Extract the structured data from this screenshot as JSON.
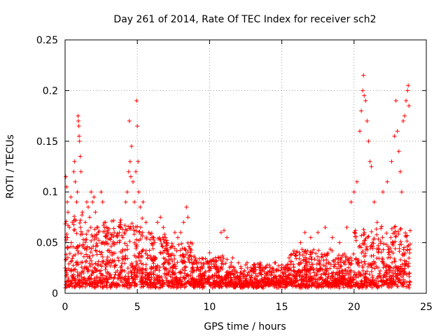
{
  "chart_data": {
    "type": "scatter",
    "title": "Day 261 of 2014, Rate Of TEC Index for receiver sch2",
    "xlabel": "GPS time / hours",
    "ylabel": "ROTI / TECUs",
    "xlim": [
      0,
      25
    ],
    "ylim": [
      0,
      0.25
    ],
    "x_ticks": [
      0,
      5,
      10,
      15,
      20,
      25
    ],
    "y_ticks": [
      0,
      0.05,
      0.1,
      0.15,
      0.2,
      0.25
    ],
    "x_tick_labels": [
      "0",
      "5",
      "10",
      "15",
      "20",
      "25"
    ],
    "y_tick_labels": [
      "0",
      "0.05",
      "0.1",
      "0.15",
      "0.2",
      "0.25"
    ],
    "grid": true,
    "legend": "none",
    "marker": "plus",
    "marker_color": "#ff0000",
    "x_data_range": [
      0,
      23.9
    ],
    "series": [
      {
        "points": [
          [
            0.05,
            0.115
          ],
          [
            0.1,
            0.105
          ],
          [
            0.15,
            0.09
          ],
          [
            0.2,
            0.08
          ],
          [
            0.3,
            0.065
          ],
          [
            0.4,
            0.095
          ],
          [
            0.5,
            0.07
          ],
          [
            0.6,
            0.12
          ],
          [
            0.65,
            0.13
          ],
          [
            0.7,
            0.11
          ],
          [
            0.8,
            0.09
          ],
          [
            0.85,
            0.1
          ],
          [
            0.9,
            0.175
          ],
          [
            0.92,
            0.17
          ],
          [
            0.95,
            0.165
          ],
          [
            0.97,
            0.155
          ],
          [
            1.0,
            0.15
          ],
          [
            1.05,
            0.135
          ],
          [
            1.1,
            0.12
          ],
          [
            1.2,
            0.08
          ],
          [
            1.4,
            0.07
          ],
          [
            1.5,
            0.09
          ],
          [
            1.6,
            0.085
          ],
          [
            1.7,
            0.075
          ],
          [
            1.8,
            0.1
          ],
          [
            1.9,
            0.09
          ],
          [
            2.0,
            0.095
          ],
          [
            2.1,
            0.08
          ],
          [
            2.2,
            0.065
          ],
          [
            2.3,
            0.06
          ],
          [
            2.5,
            0.1
          ],
          [
            2.6,
            0.09
          ],
          [
            2.8,
            0.07
          ],
          [
            3.0,
            0.06
          ],
          [
            3.2,
            0.055
          ],
          [
            3.4,
            0.06
          ],
          [
            3.6,
            0.05
          ],
          [
            3.8,
            0.07
          ],
          [
            4.0,
            0.055
          ],
          [
            4.1,
            0.06
          ],
          [
            4.2,
            0.09
          ],
          [
            4.3,
            0.1
          ],
          [
            4.4,
            0.12
          ],
          [
            4.45,
            0.17
          ],
          [
            4.5,
            0.13
          ],
          [
            4.55,
            0.115
          ],
          [
            4.6,
            0.145
          ],
          [
            4.7,
            0.11
          ],
          [
            4.8,
            0.09
          ],
          [
            4.9,
            0.12
          ],
          [
            4.95,
            0.19
          ],
          [
            5.0,
            0.165
          ],
          [
            5.05,
            0.13
          ],
          [
            5.1,
            0.1
          ],
          [
            5.2,
            0.085
          ],
          [
            5.4,
            0.09
          ],
          [
            5.6,
            0.07
          ],
          [
            5.8,
            0.06
          ],
          [
            6.0,
            0.055
          ],
          [
            6.2,
            0.05
          ],
          [
            6.4,
            0.07
          ],
          [
            6.6,
            0.075
          ],
          [
            6.8,
            0.065
          ],
          [
            7.0,
            0.05
          ],
          [
            7.3,
            0.045
          ],
          [
            7.6,
            0.06
          ],
          [
            7.8,
            0.055
          ],
          [
            8.0,
            0.06
          ],
          [
            8.2,
            0.07
          ],
          [
            8.4,
            0.085
          ],
          [
            8.5,
            0.075
          ],
          [
            8.7,
            0.05
          ],
          [
            9.0,
            0.035
          ],
          [
            9.4,
            0.03
          ],
          [
            9.8,
            0.03
          ],
          [
            10.0,
            0.04
          ],
          [
            10.4,
            0.035
          ],
          [
            10.8,
            0.06
          ],
          [
            11.0,
            0.062
          ],
          [
            11.2,
            0.055
          ],
          [
            11.6,
            0.035
          ],
          [
            12.0,
            0.03
          ],
          [
            12.5,
            0.028
          ],
          [
            13.0,
            0.025
          ],
          [
            13.5,
            0.03
          ],
          [
            14.0,
            0.028
          ],
          [
            14.5,
            0.03
          ],
          [
            15.0,
            0.025
          ],
          [
            15.5,
            0.035
          ],
          [
            16.0,
            0.04
          ],
          [
            16.3,
            0.05
          ],
          [
            16.6,
            0.06
          ],
          [
            17.0,
            0.055
          ],
          [
            17.5,
            0.06
          ],
          [
            18.0,
            0.065
          ],
          [
            18.5,
            0.055
          ],
          [
            19.0,
            0.05
          ],
          [
            19.5,
            0.065
          ],
          [
            19.8,
            0.09
          ],
          [
            20.0,
            0.1
          ],
          [
            20.2,
            0.11
          ],
          [
            20.4,
            0.16
          ],
          [
            20.5,
            0.18
          ],
          [
            20.6,
            0.2
          ],
          [
            20.65,
            0.215
          ],
          [
            20.7,
            0.195
          ],
          [
            20.8,
            0.19
          ],
          [
            20.9,
            0.17
          ],
          [
            21.0,
            0.15
          ],
          [
            21.1,
            0.13
          ],
          [
            21.2,
            0.125
          ],
          [
            21.4,
            0.09
          ],
          [
            21.6,
            0.07
          ],
          [
            22.0,
            0.1
          ],
          [
            22.3,
            0.11
          ],
          [
            22.6,
            0.13
          ],
          [
            22.8,
            0.155
          ],
          [
            22.9,
            0.19
          ],
          [
            23.0,
            0.16
          ],
          [
            23.1,
            0.14
          ],
          [
            23.2,
            0.12
          ],
          [
            23.3,
            0.1
          ],
          [
            23.4,
            0.17
          ],
          [
            23.5,
            0.175
          ],
          [
            23.6,
            0.19
          ],
          [
            23.7,
            0.2
          ],
          [
            23.75,
            0.205
          ],
          [
            23.8,
            0.185
          ]
        ]
      }
    ]
  }
}
